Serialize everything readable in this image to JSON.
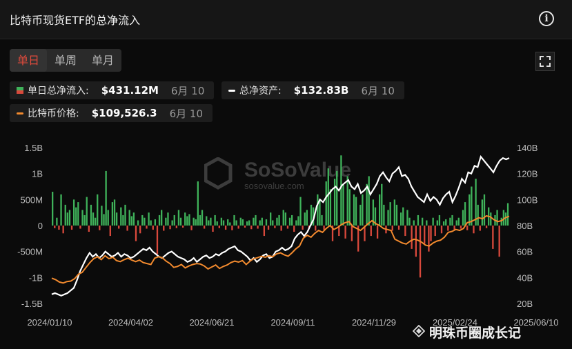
{
  "header": {
    "title": "比特币现货ETF的总净流入"
  },
  "tabs": [
    {
      "label": "单日",
      "active": true
    },
    {
      "label": "单周",
      "active": false
    },
    {
      "label": "单月",
      "active": false
    }
  ],
  "stats": {
    "daily_inflow": {
      "label": "单日总净流入:",
      "value": "$431.12M",
      "date": "6月 10"
    },
    "net_assets": {
      "label": "总净资产:",
      "value": "$132.83B",
      "date": "6月 10"
    },
    "btc_price": {
      "label": "比特币价格:",
      "value": "$109,526.3",
      "date": "6月 10"
    }
  },
  "watermark": {
    "brand": "SoSoValue",
    "url": "sosovalue.com"
  },
  "footer_watermark": "明珠币圈成长记",
  "colors": {
    "inflow": "#3fb25a",
    "outflow": "#d9493c",
    "assets": "#ffffff",
    "price": "#f28a2e",
    "accent": "#e64b3c"
  },
  "chart_data": {
    "type": "bar",
    "x_ticks": [
      "2024/01/10",
      "2024/04/02",
      "2024/06/21",
      "2024/09/11",
      "2024/11/29",
      "2025/02/24",
      "2025/06/10"
    ],
    "y_left_ticks": [
      "1.5B",
      "1B",
      "500M",
      "0",
      "-500M",
      "-1B",
      "-1.5B"
    ],
    "y_left_range": [
      -1500,
      1500
    ],
    "y_right_ticks": [
      "140B",
      "120B",
      "100B",
      "80B",
      "60B",
      "40B",
      "20B"
    ],
    "y_right_range": [
      20,
      140
    ],
    "series": [
      {
        "name": "单日总净流入",
        "kind": "bar",
        "unit": "M USD",
        "values": [
          650,
          -50,
          150,
          -80,
          600,
          -150,
          400,
          250,
          300,
          -80,
          500,
          350,
          450,
          -60,
          300,
          200,
          550,
          -120,
          400,
          250,
          150,
          600,
          -90,
          380,
          220,
          1050,
          300,
          -200,
          450,
          500,
          250,
          -60,
          350,
          200,
          400,
          -100,
          300,
          180,
          250,
          -300,
          100,
          -150,
          200,
          150,
          -60,
          250,
          100,
          -80,
          120,
          -550,
          200,
          300,
          -100,
          150,
          250,
          -70,
          100,
          200,
          -50,
          300,
          150,
          -40,
          250,
          180,
          220,
          -90,
          150,
          120,
          850,
          200,
          300,
          -60,
          180,
          100,
          150,
          -120,
          200,
          80,
          -50,
          150,
          100,
          -80,
          120,
          60,
          -90,
          200,
          100,
          -60,
          150,
          120,
          -40,
          80,
          100,
          -70,
          150,
          200,
          -60,
          100,
          150,
          -200,
          120,
          -80,
          250,
          100,
          -50,
          150,
          200,
          -100,
          300,
          250,
          -60,
          150,
          200,
          -120,
          100,
          180,
          550,
          -80,
          250,
          300,
          -60,
          400,
          350,
          -100,
          600,
          500,
          200,
          -80,
          850,
          1100,
          700,
          -300,
          900,
          1050,
          -200,
          1350,
          800,
          -250,
          950,
          700,
          -300,
          600,
          550,
          -500,
          400,
          600,
          -300,
          800,
          950,
          -200,
          500,
          350,
          -250,
          600,
          800,
          400,
          -150,
          300,
          450,
          -100,
          500,
          400,
          -80,
          250,
          350,
          -200,
          300,
          150,
          -450,
          100,
          -600,
          200,
          -1000,
          150,
          -350,
          100,
          -500,
          -300,
          150,
          -200,
          100,
          200,
          -150,
          80,
          120,
          -100,
          150,
          200,
          -80,
          100,
          150,
          -60,
          300,
          450,
          -90,
          600,
          750,
          -150,
          900,
          400,
          -100,
          500,
          600,
          -50,
          350,
          250,
          -450,
          200,
          300,
          -600,
          150,
          300,
          250,
          431
        ]
      },
      {
        "name": "总净资产",
        "kind": "line",
        "unit": "B USD",
        "values": [
          27,
          28,
          27,
          26,
          27,
          28,
          30,
          32,
          38,
          45,
          50,
          55,
          59,
          56,
          58,
          55,
          57,
          60,
          58,
          56,
          57,
          59,
          56,
          58,
          57,
          55,
          56,
          58,
          60,
          62,
          61,
          63,
          60,
          58,
          56,
          55,
          57,
          59,
          60,
          58,
          56,
          55,
          54,
          52,
          53,
          55,
          52,
          54,
          56,
          57,
          55,
          56,
          58,
          57,
          59,
          60,
          62,
          63,
          64,
          61,
          60,
          58,
          56,
          53,
          55,
          52,
          54,
          57,
          58,
          55,
          56,
          60,
          61,
          63,
          61,
          62,
          64,
          70,
          73,
          75,
          72,
          75,
          80,
          85,
          95,
          100,
          98,
          102,
          105,
          108,
          110,
          107,
          111,
          113,
          115,
          110,
          108,
          112,
          105,
          107,
          110,
          104,
          108,
          112,
          118,
          121,
          117,
          114,
          120,
          122,
          125,
          118,
          119,
          116,
          110,
          106,
          102,
          100,
          98,
          104,
          99,
          102,
          100,
          96,
          101,
          104,
          106,
          98,
          103,
          109,
          116,
          113,
          121,
          120,
          126,
          125,
          133,
          130,
          127,
          124,
          121,
          126,
          130,
          132,
          131,
          132
        ]
      },
      {
        "name": "比特币价格",
        "kind": "line",
        "unit": "USD",
        "values": [
          46000,
          44500,
          42000,
          41000,
          42500,
          43000,
          45500,
          50000,
          52000,
          57000,
          62000,
          66000,
          68000,
          65000,
          69000,
          66000,
          67500,
          64000,
          63000,
          65000,
          66500,
          64500,
          63000,
          64500,
          62000,
          61000,
          60000,
          66500,
          68000,
          67000,
          63500,
          61000,
          57000,
          58000,
          60000,
          56500,
          58500,
          60000,
          61000,
          60500,
          58500,
          55500,
          57500,
          59500,
          56000,
          58000,
          59500,
          62000,
          63500,
          62500,
          64000,
          60000,
          63500,
          66000,
          67000,
          68500,
          67500,
          69000,
          68000,
          71000,
          72000,
          70000,
          68500,
          72000,
          76000,
          79000,
          87000,
          90000,
          88000,
          92000,
          95000,
          93000,
          97000,
          100000,
          96000,
          98000,
          101000,
          103000,
          104000,
          99000,
          97000,
          95000,
          98500,
          102000,
          105000,
          102000,
          100000,
          97000,
          96000,
          95000,
          86000,
          84000,
          82000,
          81000,
          84000,
          86000,
          85000,
          83000,
          80000,
          79000,
          82000,
          84000,
          85000,
          88000,
          93000,
          94000,
          96000,
          95000,
          97000,
          103000,
          104000,
          106000,
          108000,
          107000,
          110000,
          109000,
          106000,
          104000,
          105000,
          108000,
          109526
        ]
      }
    ]
  }
}
